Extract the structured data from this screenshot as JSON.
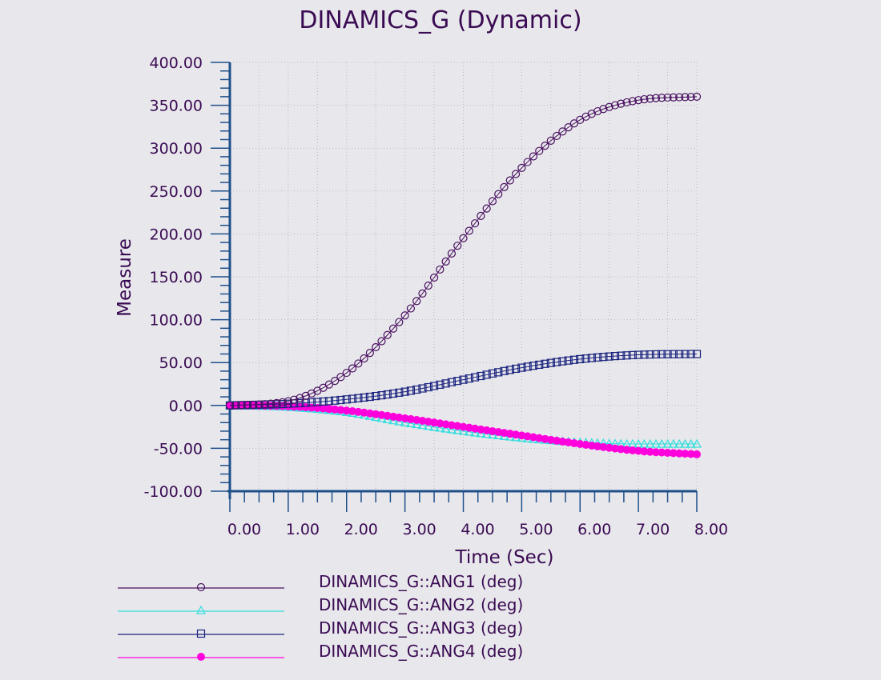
{
  "chart_data": {
    "type": "line",
    "title": "DINAMICS_G (Dynamic)",
    "xlabel": "Time (Sec)",
    "ylabel": "Measure",
    "xlim": [
      0,
      8
    ],
    "ylim": [
      -100,
      400
    ],
    "x_ticks": [
      "0.00",
      "1.00",
      "2.00",
      "3.00",
      "4.00",
      "5.00",
      "6.00",
      "7.00",
      "8.00"
    ],
    "y_ticks": [
      "400.00",
      "350.00",
      "300.00",
      "250.00",
      "200.00",
      "150.00",
      "100.00",
      "50.00",
      "0.00",
      "-50.00",
      "-100.00"
    ],
    "grid": true,
    "legend_position": "bottom",
    "x": [
      0,
      1,
      2,
      3,
      4,
      5,
      6,
      7,
      8
    ],
    "series": [
      {
        "name": "DINAMICS_G::ANG1 (deg)",
        "color": "#4a1060",
        "marker": "circle-open",
        "values": [
          0,
          5,
          38,
          105,
          195,
          277,
          333,
          356,
          360
        ]
      },
      {
        "name": "DINAMICS_G::ANG2 (deg)",
        "color": "#33dddd",
        "marker": "triangle-open",
        "values": [
          0,
          -2,
          -8,
          -20,
          -30,
          -38,
          -43,
          -45,
          -45
        ]
      },
      {
        "name": "DINAMICS_G::ANG3 (deg)",
        "color": "#1a237e",
        "marker": "square-open",
        "values": [
          0,
          2,
          7,
          16,
          30,
          44,
          54,
          59,
          60
        ]
      },
      {
        "name": "DINAMICS_G::ANG4 (deg)",
        "color": "#ff00dd",
        "marker": "circle-filled",
        "values": [
          0,
          -1,
          -6,
          -15,
          -25,
          -35,
          -45,
          -53,
          -57
        ]
      }
    ]
  }
}
